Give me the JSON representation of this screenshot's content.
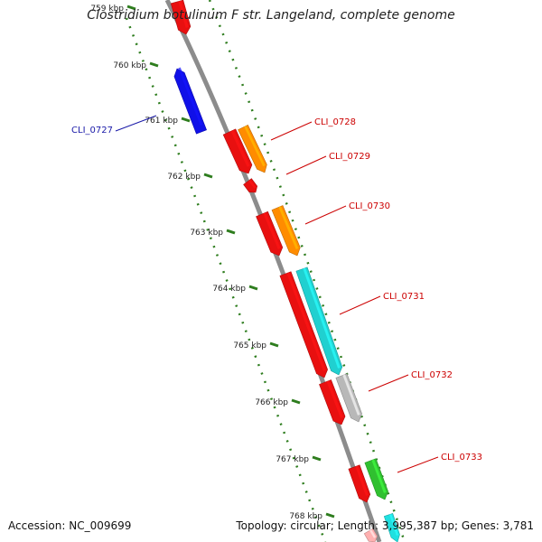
{
  "title": "Clostridium botulinum F str. Langeland, complete genome",
  "footer": {
    "accession": "Accession: NC_009699",
    "summary": "Topology: circular; Length: 3,995,387 bp; Genes: 3,781"
  },
  "colors": {
    "backbone": "#8c8c8c",
    "ruler": "#2e7d1e",
    "label_forward": "#cc0000",
    "label_reverse": "#1a1aa8"
  },
  "ruler_ticks": [
    "759 kbp",
    "760 kbp",
    "761 kbp",
    "762 kbp",
    "763 kbp",
    "764 kbp",
    "765 kbp",
    "766 kbp",
    "767 kbp",
    "768 kbp"
  ],
  "genes": [
    {
      "id": "g0",
      "strand": "forward",
      "color": "#e81010",
      "label": ""
    },
    {
      "id": "g1",
      "strand": "reverse",
      "color": "#1010e8",
      "label": "CLI_0727"
    },
    {
      "id": "g2",
      "strand": "forward",
      "color": "#e81010",
      "label": ""
    },
    {
      "id": "g3",
      "strand": "forward",
      "color": "#ff8c00",
      "label": "CLI_0728"
    },
    {
      "id": "g4",
      "strand": "forward",
      "color": "#e81010",
      "label": "CLI_0729"
    },
    {
      "id": "g5",
      "strand": "forward",
      "color": "#e81010",
      "label": ""
    },
    {
      "id": "g6",
      "strand": "forward",
      "color": "#ff8c00",
      "label": "CLI_0730"
    },
    {
      "id": "g7",
      "strand": "forward",
      "color": "#e81010",
      "label": ""
    },
    {
      "id": "g8",
      "strand": "forward",
      "color": "#20d0d0",
      "label": "CLI_0731"
    },
    {
      "id": "g9",
      "strand": "forward",
      "color": "#e81010",
      "label": ""
    },
    {
      "id": "g10",
      "strand": "forward",
      "color": "#b8b8b8",
      "label": "CLI_0732"
    },
    {
      "id": "g11",
      "strand": "forward",
      "color": "#e81010",
      "label": ""
    },
    {
      "id": "g12",
      "strand": "forward",
      "color": "#30c030",
      "label": "CLI_0733"
    },
    {
      "id": "g13",
      "strand": "forward",
      "color": "#ffb0b0",
      "label": ""
    },
    {
      "id": "g14",
      "strand": "forward",
      "color": "#20e0e0",
      "label": ""
    }
  ]
}
